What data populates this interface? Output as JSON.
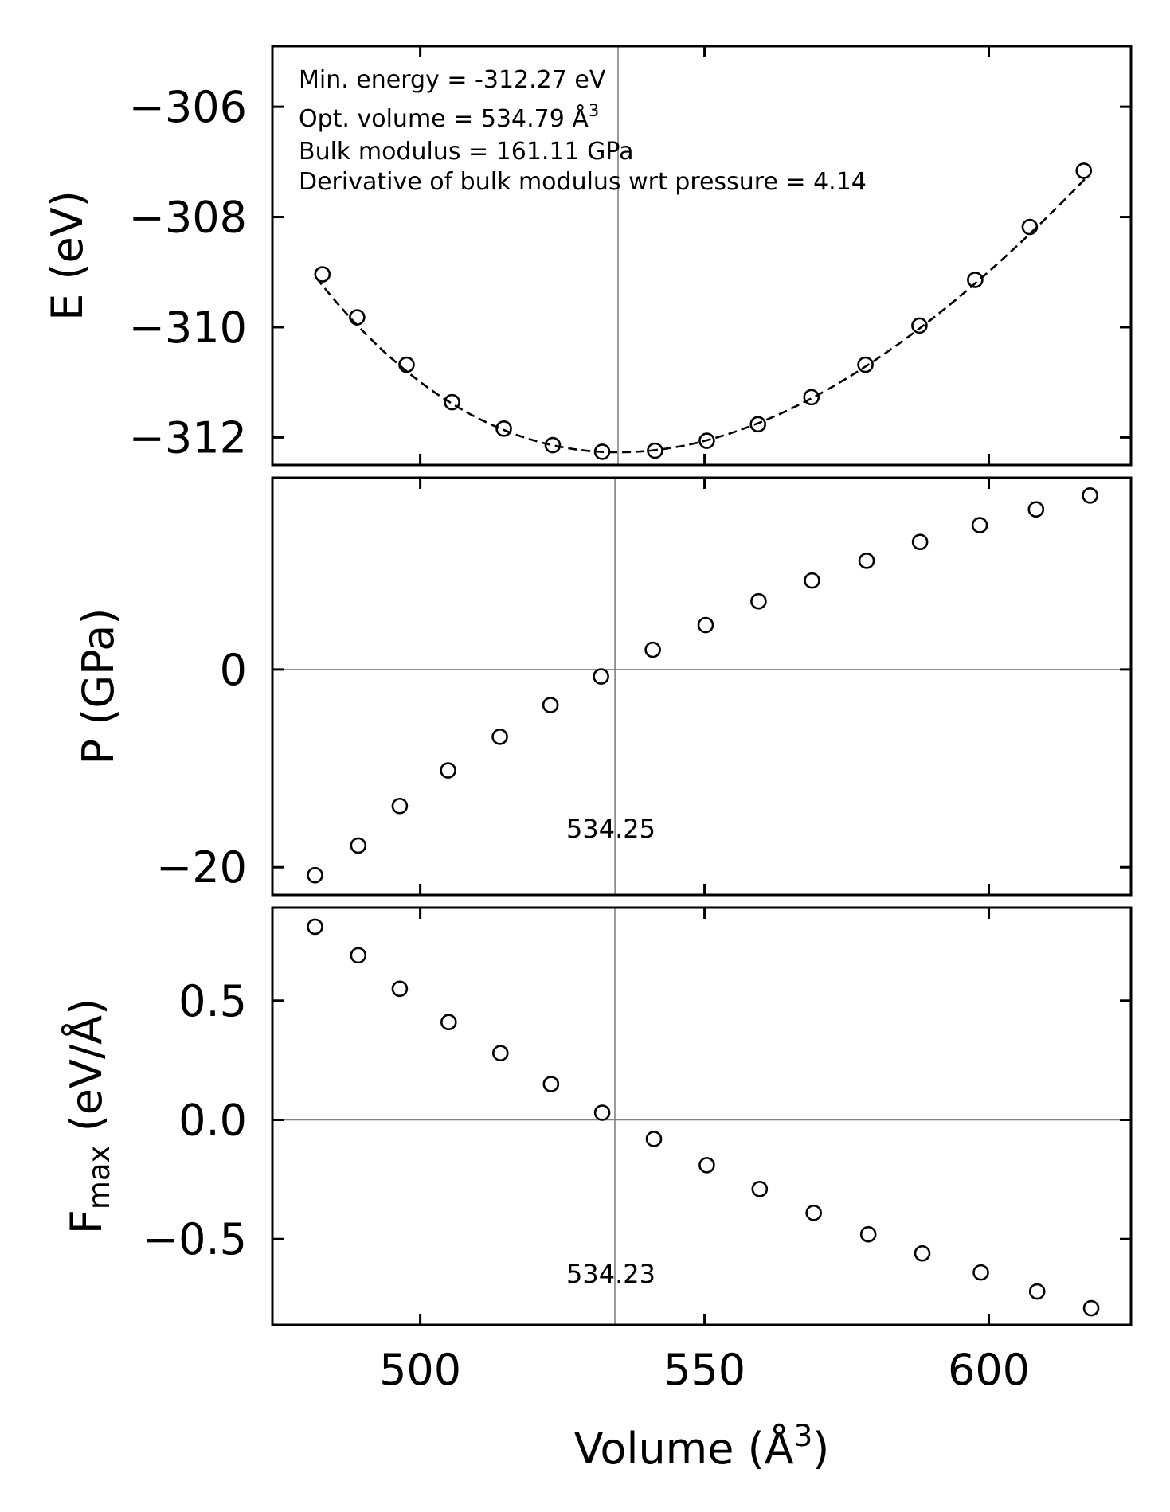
{
  "chart_data": [
    {
      "type": "scatter",
      "panel": "energy",
      "ylabel": "E (eV)",
      "xlim": [
        474,
        625
      ],
      "ylim": [
        -312.5,
        -304.9
      ],
      "yticks": [
        -306,
        -308,
        -310,
        -312
      ],
      "ytick_labels": [
        "−306",
        "−308",
        "−310",
        "−312"
      ],
      "xticks": [
        500,
        550,
        600
      ],
      "vline_x": 534.79,
      "annotations": [
        "Min. energy = -312.27 eV",
        "Opt. volume = 534.79 Å",
        "Bulk modulus = 161.11 GPa",
        "Derivative of bulk modulus wrt pressure = 4.14"
      ],
      "annotation_superscript": "3",
      "x": [
        482.8,
        488.9,
        497.6,
        505.6,
        514.7,
        523.3,
        532.0,
        541.3,
        550.4,
        559.4,
        568.8,
        578.3,
        587.8,
        597.6,
        607.2,
        616.7
      ],
      "y": [
        -309.04,
        -309.82,
        -310.68,
        -311.36,
        -311.84,
        -312.14,
        -312.26,
        -312.24,
        -312.06,
        -311.76,
        -311.27,
        -310.68,
        -309.97,
        -309.14,
        -308.18,
        -307.16
      ],
      "fit": {
        "type": "birch-murnaghan",
        "E0": -312.27,
        "V0": 534.79,
        "B0_GPa": 161.11,
        "B0_prime": 4.14,
        "x_range": [
          481.7,
          617.0
        ],
        "style": "dashed"
      }
    },
    {
      "type": "scatter",
      "panel": "pressure",
      "ylabel": "P (GPa)",
      "xlim": [
        474,
        625
      ],
      "ylim": [
        -22.8,
        19.4
      ],
      "yticks": [
        0,
        -20
      ],
      "ytick_labels": [
        "0",
        "−20"
      ],
      "xticks": [
        500,
        550,
        600
      ],
      "vline_x": 534.25,
      "hline_y": 0,
      "annotation": "534.25",
      "x": [
        481.5,
        489.1,
        496.4,
        504.9,
        514.0,
        522.9,
        531.8,
        540.9,
        550.2,
        559.5,
        568.9,
        578.5,
        587.9,
        598.4,
        608.3,
        617.8
      ],
      "y": [
        -20.8,
        -17.8,
        -13.8,
        -10.2,
        -6.8,
        -3.6,
        -0.7,
        2.0,
        4.5,
        6.9,
        9.0,
        11.0,
        12.9,
        14.6,
        16.2,
        17.6
      ]
    },
    {
      "type": "scatter",
      "panel": "force",
      "ylabel": "F",
      "ylabel_subscript": "max",
      "ylabel_suffix": " (eV/Å)",
      "xlabel": "Volume (Å",
      "xlabel_superscript": "3",
      "xlabel_suffix": ")",
      "xlim": [
        474,
        625
      ],
      "ylim": [
        -0.86,
        0.89
      ],
      "yticks": [
        0.5,
        0.0,
        -0.5
      ],
      "ytick_labels": [
        "0.5",
        "0.0",
        "−0.5"
      ],
      "xticks": [
        500,
        550,
        600
      ],
      "xtick_labels": [
        "500",
        "550",
        "600"
      ],
      "vline_x": 534.23,
      "hline_y": 0,
      "annotation": "534.23",
      "x": [
        481.5,
        489.1,
        496.4,
        505.0,
        514.1,
        523.0,
        532.0,
        541.1,
        550.4,
        559.7,
        569.2,
        578.8,
        588.3,
        598.6,
        608.5,
        618.0
      ],
      "y": [
        0.81,
        0.69,
        0.55,
        0.41,
        0.28,
        0.15,
        0.03,
        -0.08,
        -0.19,
        -0.29,
        -0.39,
        -0.48,
        -0.56,
        -0.64,
        -0.72,
        -0.79
      ]
    }
  ]
}
